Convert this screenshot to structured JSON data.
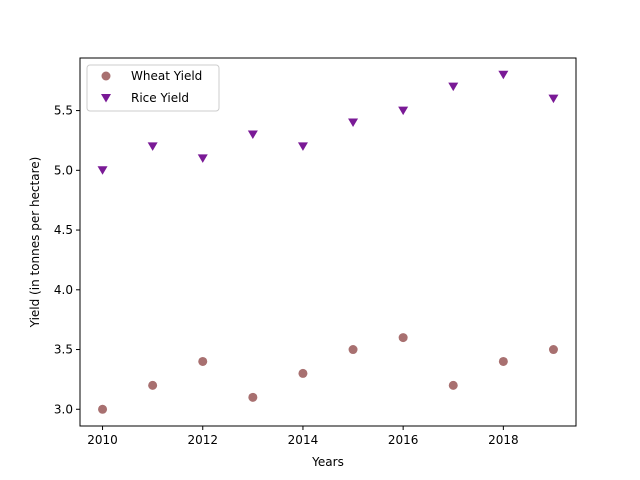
{
  "chart_data": {
    "type": "scatter",
    "xlabel": "Years",
    "ylabel": "Yield (in tonnes per hectare)",
    "xlim": [
      2009.55,
      2019.45
    ],
    "ylim": [
      2.86,
      5.94
    ],
    "xticks": [
      2010,
      2012,
      2014,
      2016,
      2018
    ],
    "yticks": [
      3.0,
      3.5,
      4.0,
      4.5,
      5.0,
      5.5
    ],
    "ytick_labels": [
      "3.0",
      "3.5",
      "4.0",
      "4.5",
      "5.0",
      "5.5"
    ],
    "grid": false,
    "legend_position": "upper-left",
    "x": [
      2010,
      2011,
      2012,
      2013,
      2014,
      2015,
      2016,
      2017,
      2018,
      2019
    ],
    "series": [
      {
        "name": "Wheat Yield",
        "marker": "circle",
        "color": "#a87070",
        "values": [
          3.0,
          3.2,
          3.4,
          3.1,
          3.3,
          3.5,
          3.6,
          3.2,
          3.4,
          3.5
        ]
      },
      {
        "name": "Rice Yield",
        "marker": "triangle-down",
        "color": "#7a1a96",
        "values": [
          5.0,
          5.2,
          5.1,
          5.3,
          5.2,
          5.4,
          5.5,
          5.7,
          5.8,
          5.6
        ]
      }
    ]
  }
}
